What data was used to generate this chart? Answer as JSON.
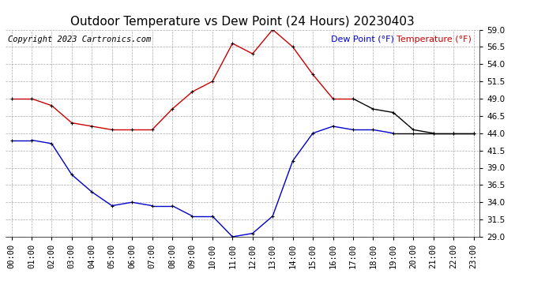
{
  "title": "Outdoor Temperature vs Dew Point (24 Hours) 20230403",
  "copyright": "Copyright 2023 Cartronics.com",
  "legend_dew": "Dew Point (°F)",
  "legend_temp": "Temperature (°F)",
  "hours": [
    "00:00",
    "01:00",
    "02:00",
    "03:00",
    "04:00",
    "05:00",
    "06:00",
    "07:00",
    "08:00",
    "09:00",
    "10:00",
    "11:00",
    "12:00",
    "13:00",
    "14:00",
    "15:00",
    "16:00",
    "17:00",
    "18:00",
    "19:00",
    "20:00",
    "21:00",
    "22:00",
    "23:00"
  ],
  "temperature": [
    49.0,
    49.0,
    48.0,
    45.5,
    45.0,
    44.5,
    44.5,
    44.5,
    47.5,
    50.0,
    51.5,
    57.0,
    55.5,
    59.0,
    56.5,
    52.5,
    49.0,
    49.0,
    47.5,
    47.0,
    44.5,
    44.0,
    44.0,
    44.0
  ],
  "dew_point": [
    43.0,
    43.0,
    42.5,
    38.0,
    35.5,
    33.5,
    34.0,
    33.5,
    33.5,
    32.0,
    32.0,
    29.0,
    29.5,
    32.0,
    40.0,
    44.0,
    45.0,
    44.5,
    44.5,
    44.0,
    44.0,
    44.0,
    44.0,
    44.0
  ],
  "temp_color_segments": [
    "#cc0000",
    "#cc0000",
    "#cc0000",
    "#cc0000",
    "#cc0000",
    "#cc0000",
    "#cc0000",
    "#cc0000",
    "#cc0000",
    "#cc0000",
    "#cc0000",
    "#cc0000",
    "#cc0000",
    "#cc0000",
    "#cc0000",
    "#cc0000",
    "#cc0000",
    "#000000",
    "#000000",
    "#000000",
    "#000000",
    "#000000",
    "#000000",
    "#000000"
  ],
  "dew_color_segments": [
    "#0000cc",
    "#0000cc",
    "#0000cc",
    "#0000cc",
    "#0000cc",
    "#0000cc",
    "#0000cc",
    "#0000cc",
    "#0000cc",
    "#0000cc",
    "#0000cc",
    "#0000cc",
    "#0000cc",
    "#0000cc",
    "#0000cc",
    "#0000cc",
    "#0000cc",
    "#0000cc",
    "#0000cc",
    "#000000",
    "#000000",
    "#000000",
    "#000000",
    "#000000"
  ],
  "temp_color": "#cc0000",
  "dew_color": "#0000cc",
  "ylim_min": 29.0,
  "ylim_max": 59.0,
  "yticks": [
    29.0,
    31.5,
    34.0,
    36.5,
    39.0,
    41.5,
    44.0,
    46.5,
    49.0,
    51.5,
    54.0,
    56.5,
    59.0
  ],
  "bg_color": "#ffffff",
  "grid_color": "#aaaaaa",
  "marker": ".",
  "marker_size": 4,
  "linewidth": 1.0,
  "title_fontsize": 11,
  "tick_fontsize": 7.5,
  "legend_fontsize": 8,
  "copyright_fontsize": 7.5
}
